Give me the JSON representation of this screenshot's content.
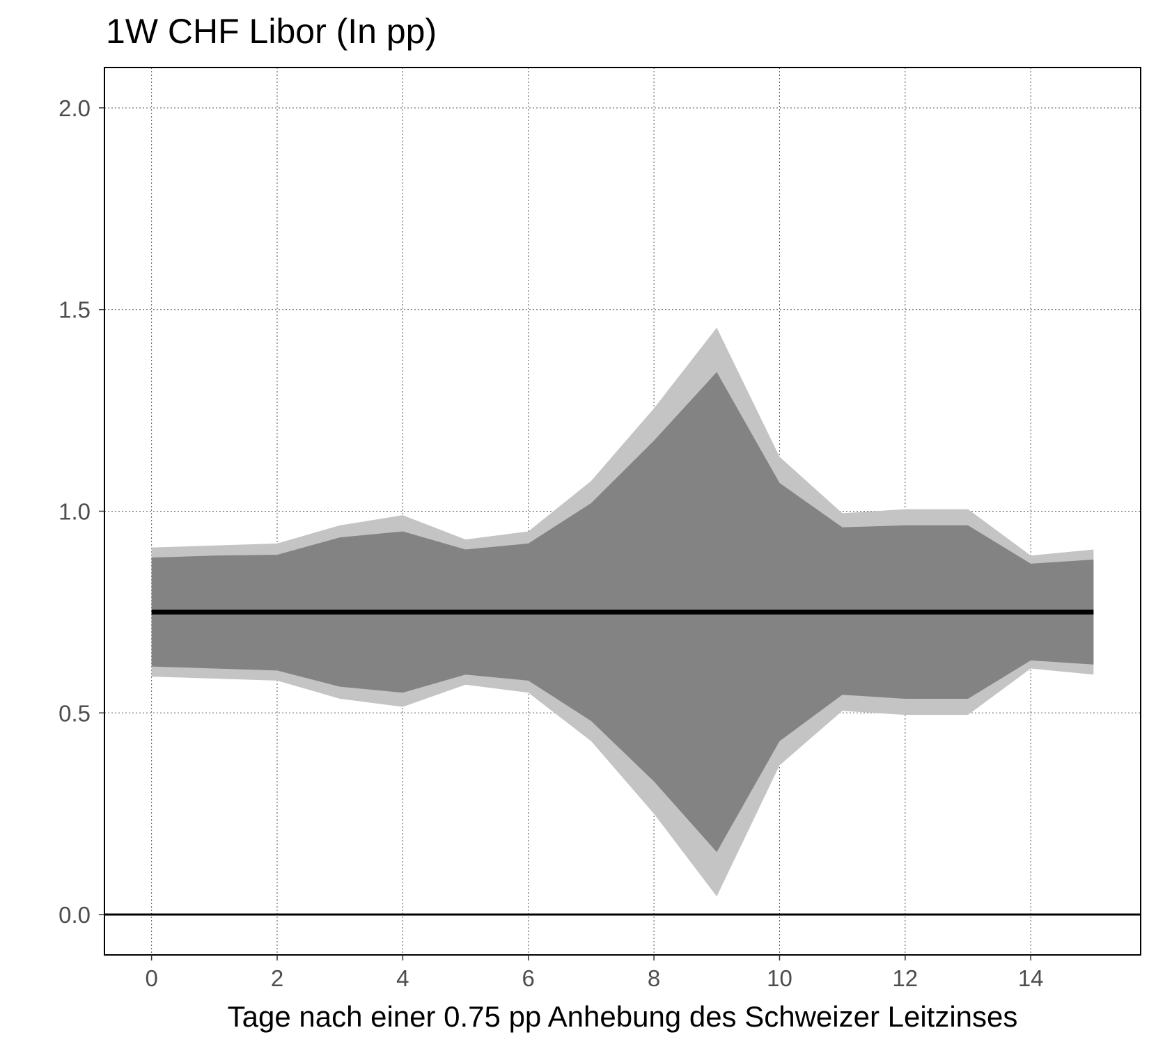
{
  "chart_data": {
    "type": "area",
    "title": "1W CHF Libor (In pp)",
    "xlabel": "Tage nach einer 0.75 pp Anhebung des Schweizer Leitzinses",
    "ylabel": "",
    "xlim": [
      -0.75,
      15.75
    ],
    "ylim": [
      -0.1,
      2.1
    ],
    "x_ticks": [
      0,
      2,
      4,
      6,
      8,
      10,
      12,
      14
    ],
    "x_tick_labels": [
      "0",
      "2",
      "4",
      "6",
      "8",
      "10",
      "12",
      "14"
    ],
    "y_ticks": [
      0.0,
      0.5,
      1.0,
      1.5,
      2.0
    ],
    "y_tick_labels": [
      "0.0",
      "0.5",
      "1.0",
      "1.5",
      "2.0"
    ],
    "grid": true,
    "x": [
      0,
      1,
      2,
      3,
      4,
      5,
      6,
      7,
      8,
      9,
      10,
      11,
      12,
      13,
      14,
      15
    ],
    "series": [
      {
        "type": "band",
        "color": "#c4c4c4",
        "upper": [
          0.91,
          0.915,
          0.92,
          0.965,
          0.99,
          0.93,
          0.95,
          1.075,
          1.255,
          1.455,
          1.135,
          0.995,
          1.005,
          1.005,
          0.89,
          0.905
        ],
        "lower": [
          0.59,
          0.585,
          0.58,
          0.535,
          0.515,
          0.57,
          0.55,
          0.43,
          0.25,
          0.045,
          0.37,
          0.505,
          0.495,
          0.495,
          0.61,
          0.595
        ]
      },
      {
        "type": "band",
        "color": "#838383",
        "upper": [
          0.885,
          0.89,
          0.892,
          0.935,
          0.95,
          0.905,
          0.92,
          1.02,
          1.175,
          1.345,
          1.07,
          0.96,
          0.965,
          0.965,
          0.87,
          0.88
        ],
        "lower": [
          0.615,
          0.61,
          0.605,
          0.565,
          0.55,
          0.595,
          0.58,
          0.48,
          0.33,
          0.155,
          0.43,
          0.545,
          0.535,
          0.535,
          0.63,
          0.62
        ]
      },
      {
        "type": "line",
        "color": "#000000",
        "values": [
          0.75,
          0.75,
          0.75,
          0.75,
          0.75,
          0.75,
          0.75,
          0.75,
          0.75,
          0.75,
          0.75,
          0.75,
          0.75,
          0.75,
          0.75,
          0.75
        ]
      }
    ],
    "reference_line": {
      "y": 0.0,
      "color": "#000000"
    }
  }
}
